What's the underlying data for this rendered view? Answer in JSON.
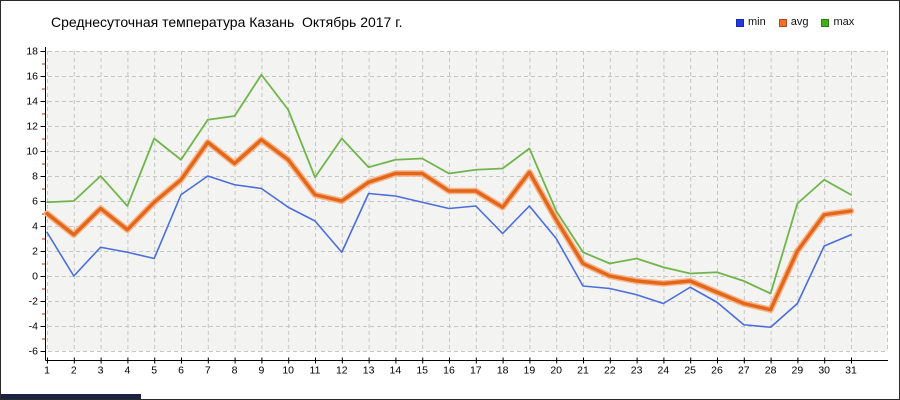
{
  "window": {
    "background": "#ffffff"
  },
  "legend": {
    "items": [
      {
        "label": "min",
        "color": "#2437e0",
        "border": "#1b2aa8"
      },
      {
        "label": "avg",
        "color": "#ed7030",
        "border": "#b05015"
      },
      {
        "label": "max",
        "color": "#43ad1d",
        "border": "#2f8012"
      }
    ]
  },
  "scrollbar": {
    "thumb_color": "#1c2340"
  },
  "chart_data": {
    "type": "line",
    "title": "Среднесуточная температура Казань  Октябрь 2017 г.",
    "xlabel": "",
    "ylabel": "",
    "x": [
      1,
      2,
      3,
      4,
      5,
      6,
      7,
      8,
      9,
      10,
      11,
      12,
      13,
      14,
      15,
      16,
      17,
      18,
      19,
      20,
      21,
      22,
      23,
      24,
      25,
      26,
      27,
      28,
      29,
      30,
      31
    ],
    "series": [
      {
        "name": "min",
        "color": "#4a6edb",
        "width": 1.6,
        "values": [
          3.5,
          0,
          2.3,
          1.9,
          1.4,
          6.5,
          8,
          7.3,
          7,
          5.5,
          4.4,
          1.9,
          6.6,
          6.4,
          5.9,
          5.4,
          5.6,
          3.4,
          5.6,
          3,
          -0.8,
          -1,
          -1.5,
          -2.2,
          -0.9,
          -2.1,
          -3.9,
          -4.1,
          -2.2,
          2.4,
          3.3
        ]
      },
      {
        "name": "avg",
        "color": "#e2671b",
        "halo": "#f6b488",
        "width": 3.4,
        "values": [
          5,
          3.3,
          5.4,
          3.7,
          5.9,
          7.7,
          10.7,
          9,
          10.9,
          9.3,
          6.5,
          6,
          7.5,
          8.2,
          8.2,
          6.8,
          6.8,
          5.5,
          8.3,
          4.5,
          1,
          0,
          -0.4,
          -0.6,
          -0.4,
          -1.3,
          -2.2,
          -2.7,
          2,
          4.9,
          5.2
        ]
      },
      {
        "name": "max",
        "color": "#6fb54b",
        "width": 1.8,
        "values": [
          5.9,
          6,
          8,
          5.6,
          11,
          9.3,
          12.5,
          12.8,
          16.1,
          13.3,
          7.9,
          11,
          8.7,
          9.3,
          9.4,
          8.2,
          8.5,
          8.6,
          10.2,
          5.2,
          1.9,
          1,
          1.4,
          0.7,
          0.2,
          0.3,
          -0.4,
          -1.4,
          5.8,
          7.7,
          6.5
        ]
      }
    ],
    "ylim": [
      -6,
      18
    ],
    "ytick_step": 2,
    "xticks": [
      1,
      2,
      3,
      4,
      5,
      6,
      7,
      8,
      9,
      10,
      11,
      12,
      13,
      14,
      15,
      16,
      17,
      18,
      19,
      20,
      21,
      22,
      23,
      24,
      25,
      26,
      27,
      28,
      29,
      30,
      31
    ],
    "grid": true,
    "legend_position": "top-right",
    "minor_tick_color": "#cc2200"
  }
}
